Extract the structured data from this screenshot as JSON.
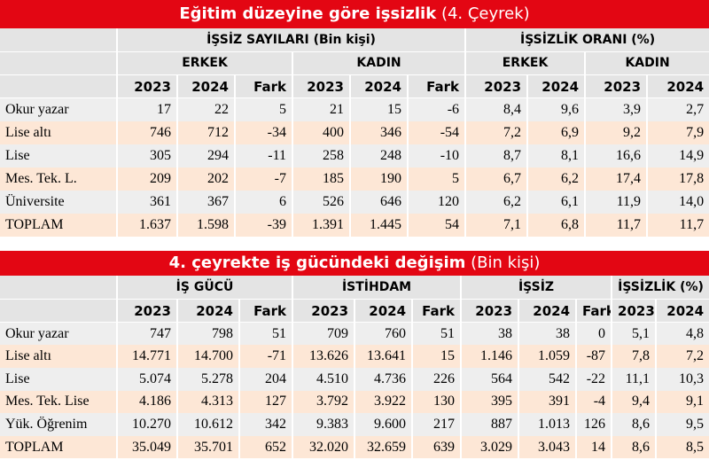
{
  "table1": {
    "title": "Eğitim düzeyine göre işsizlik",
    "subtitle": "(4. Çeyrek)",
    "groups": [
      "İŞSİZ SAYILARI (Bin kişi)",
      "İŞSİZLİK ORANI (%)"
    ],
    "subgroups": [
      "ERKEK",
      "KADIN",
      "ERKEK",
      "KADIN"
    ],
    "columns": [
      "2023",
      "2024",
      "Fark",
      "2023",
      "2024",
      "Fark",
      "2023",
      "2024",
      "2023",
      "2024"
    ],
    "rows": [
      [
        "Okur yazar",
        "17",
        "22",
        "5",
        "21",
        "15",
        "-6",
        "8,4",
        "9,6",
        "3,9",
        "2,7"
      ],
      [
        "Lise altı",
        "746",
        "712",
        "-34",
        "400",
        "346",
        "-54",
        "7,2",
        "6,9",
        "9,2",
        "7,9"
      ],
      [
        "Lise",
        "305",
        "294",
        "-11",
        "258",
        "248",
        "-10",
        "8,7",
        "8,1",
        "16,6",
        "14,9"
      ],
      [
        "Mes. Tek. L.",
        "209",
        "202",
        "-7",
        "185",
        "190",
        "5",
        "6,7",
        "6,2",
        "17,4",
        "17,8"
      ],
      [
        "Üniversite",
        "361",
        "367",
        "6",
        "526",
        "646",
        "120",
        "6,2",
        "6,1",
        "11,9",
        "14,0"
      ],
      [
        "TOPLAM",
        "1.637",
        "1.598",
        "-39",
        "1.391",
        "1.445",
        "54",
        "7,1",
        "6,8",
        "11,7",
        "11,7"
      ]
    ]
  },
  "table2": {
    "title": "4. çeyrekte iş gücündeki değişim",
    "subtitle": "(Bin kişi)",
    "groups": [
      "İŞ GÜCÜ",
      "İSTİHDAM",
      "İŞSİZ",
      "İŞSİZLİK (%)"
    ],
    "columns": [
      "2023",
      "2024",
      "Fark",
      "2023",
      "2024",
      "Fark",
      "2023",
      "2024",
      "Fark",
      "2023",
      "2024"
    ],
    "rows": [
      [
        "Okur yazar",
        "747",
        "798",
        "51",
        "709",
        "760",
        "51",
        "38",
        "38",
        "0",
        "5,1",
        "4,8"
      ],
      [
        "Lise altı",
        "14.771",
        "14.700",
        "-71",
        "13.626",
        "13.641",
        "15",
        "1.146",
        "1.059",
        "-87",
        "7,8",
        "7,2"
      ],
      [
        "Lise",
        "5.074",
        "5.278",
        "204",
        "4.510",
        "4.736",
        "226",
        "564",
        "542",
        "-22",
        "11,1",
        "10,3"
      ],
      [
        "Mes. Tek. Lise",
        "4.186",
        "4.313",
        "127",
        "3.792",
        "3.922",
        "130",
        "395",
        "391",
        "-4",
        "9,4",
        "9,1"
      ],
      [
        "Yük. Öğrenim",
        "10.270",
        "10.612",
        "342",
        "9.383",
        "9.600",
        "217",
        "887",
        "1.013",
        "126",
        "8,6",
        "9,5"
      ],
      [
        "TOPLAM",
        "35.049",
        "35.701",
        "652",
        "32.020",
        "32.659",
        "639",
        "3.029",
        "3.043",
        "14",
        "8,6",
        "8,5"
      ]
    ]
  }
}
